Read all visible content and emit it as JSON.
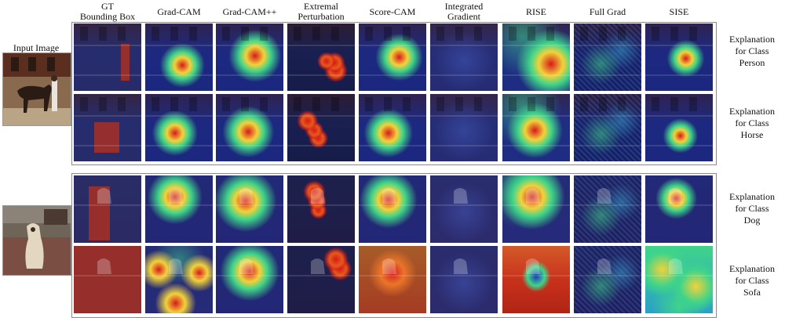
{
  "input_label": "Input Image",
  "headers": [
    "GT\nBounding Box",
    "Grad-CAM",
    "Grad-CAM++",
    "Extremal\nPerturbation",
    "Score-CAM",
    "Integrated\nGradient",
    "RISE",
    "Full Grad",
    "SISE"
  ],
  "explanations": [
    "Explanation\nfor Class\nPerson",
    "Explanation\nfor Class\nHorse",
    "Explanation\nfor Class\nDog",
    "Explanation\nfor Class\nSofa"
  ],
  "colors": {
    "heat_hot": "#d71a1a",
    "heat_warm": "#f2d23b",
    "heat_mid": "#3fd48a",
    "heat_cool": "#1d36b8",
    "scene_dark": "#1b2260",
    "gt_box": "#b5301c"
  }
}
